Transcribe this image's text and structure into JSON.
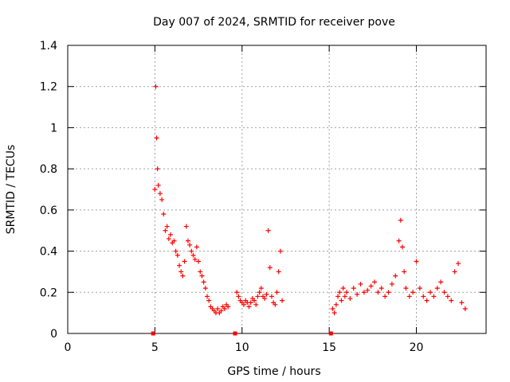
{
  "chart_data": {
    "type": "scatter",
    "title": "Day 007 of 2024, SRMTID for receiver pove",
    "xlabel": "GPS time / hours",
    "ylabel": "SRMTID / TECUs",
    "xlim": [
      0,
      24
    ],
    "ylim": [
      0,
      1.4
    ],
    "xticks": [
      0,
      5,
      10,
      15,
      20
    ],
    "yticks": [
      0,
      0.2,
      0.4,
      0.6,
      0.8,
      1,
      1.2,
      1.4
    ],
    "ytick_labels": [
      "0",
      "0.2",
      "0.4",
      "0.6",
      "0.8",
      "1",
      "1.2",
      "1.4"
    ],
    "grid": true,
    "series": [
      {
        "marker": "plus",
        "color": "#ff0000",
        "segments": [
          {
            "x": [
              5.0,
              5.05,
              5.1,
              5.15,
              5.2,
              5.3,
              5.4,
              5.5,
              5.6,
              5.7,
              5.8,
              5.9,
              6.0,
              6.1,
              6.2,
              6.3,
              6.4,
              6.5,
              6.6,
              6.7,
              6.8,
              6.9,
              7.0,
              7.1,
              7.2,
              7.3,
              7.4,
              7.5,
              7.6,
              7.7,
              7.8,
              7.9,
              8.0,
              8.1,
              8.2,
              8.3,
              8.4,
              8.5,
              8.6,
              8.7,
              8.8,
              8.9,
              9.0,
              9.1,
              9.2
            ],
            "y": [
              0.7,
              1.2,
              0.95,
              0.8,
              0.72,
              0.68,
              0.65,
              0.58,
              0.5,
              0.52,
              0.46,
              0.48,
              0.44,
              0.45,
              0.4,
              0.38,
              0.33,
              0.3,
              0.28,
              0.35,
              0.52,
              0.45,
              0.43,
              0.4,
              0.38,
              0.36,
              0.42,
              0.35,
              0.3,
              0.28,
              0.25,
              0.22,
              0.18,
              0.16,
              0.13,
              0.12,
              0.11,
              0.1,
              0.12,
              0.1,
              0.11,
              0.13,
              0.12,
              0.14,
              0.13
            ]
          },
          {
            "x": [
              9.7,
              9.8,
              9.9,
              10.0,
              10.1,
              10.2,
              10.3,
              10.4,
              10.5,
              10.6,
              10.7,
              10.8,
              10.9,
              11.0,
              11.1,
              11.2,
              11.3,
              11.4,
              11.5,
              11.6,
              11.7,
              11.8,
              11.9,
              12.0,
              12.1,
              12.2,
              12.3
            ],
            "y": [
              0.2,
              0.18,
              0.16,
              0.15,
              0.14,
              0.16,
              0.15,
              0.13,
              0.15,
              0.17,
              0.16,
              0.14,
              0.18,
              0.2,
              0.22,
              0.18,
              0.17,
              0.19,
              0.5,
              0.32,
              0.18,
              0.15,
              0.14,
              0.2,
              0.3,
              0.4,
              0.16
            ]
          },
          {
            "x": [
              15.2,
              15.3,
              15.4,
              15.5,
              15.6,
              15.7,
              15.8,
              15.9,
              16.0,
              16.2,
              16.4,
              16.6,
              16.8,
              17.0,
              17.2,
              17.4,
              17.6,
              17.8,
              18.0,
              18.2,
              18.4,
              18.6,
              18.8,
              19.0,
              19.1,
              19.2,
              19.3,
              19.4,
              19.6,
              19.8,
              20.0,
              20.2,
              20.4,
              20.6,
              20.8,
              21.0,
              21.2,
              21.4,
              21.6,
              21.8,
              22.0,
              22.2,
              22.4,
              22.6,
              22.8
            ],
            "y": [
              0.12,
              0.1,
              0.14,
              0.18,
              0.2,
              0.16,
              0.22,
              0.18,
              0.2,
              0.17,
              0.22,
              0.19,
              0.24,
              0.2,
              0.21,
              0.23,
              0.25,
              0.2,
              0.22,
              0.18,
              0.2,
              0.24,
              0.28,
              0.45,
              0.55,
              0.42,
              0.3,
              0.22,
              0.18,
              0.2,
              0.35,
              0.22,
              0.18,
              0.16,
              0.2,
              0.18,
              0.22,
              0.25,
              0.2,
              0.18,
              0.16,
              0.3,
              0.34,
              0.15,
              0.12
            ]
          }
        ],
        "zero_markers": [
          4.9,
          9.6,
          15.1
        ]
      }
    ]
  }
}
